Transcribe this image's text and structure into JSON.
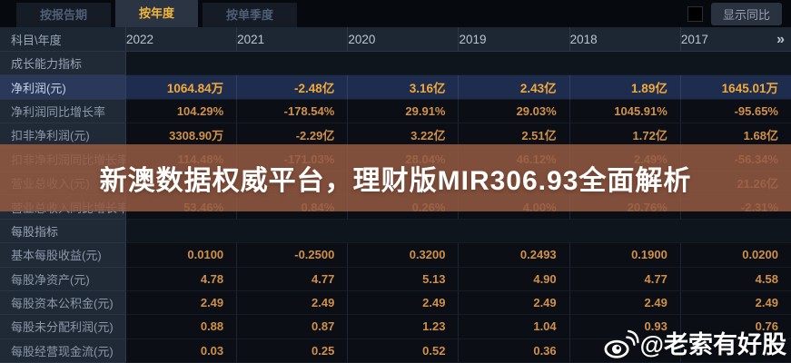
{
  "tabs": [
    {
      "label": "按报告期",
      "active": false
    },
    {
      "label": "按年度",
      "active": true
    },
    {
      "label": "按单季度",
      "active": false
    }
  ],
  "toolbar": {
    "yoy_label": "显示同比",
    "yoy_checked": false
  },
  "table": {
    "corner_label": "科目\\年度",
    "years": [
      "2022",
      "2021",
      "2020",
      "2019",
      "2018",
      "2017"
    ],
    "more_icon": "»",
    "rows": [
      {
        "type": "section",
        "label": "成长能力指标"
      },
      {
        "type": "data",
        "label": "净利润(元)",
        "highlighted": true,
        "values": [
          "1064.84万",
          "-2.48亿",
          "3.16亿",
          "2.43亿",
          "1.89亿",
          "1645.01万"
        ]
      },
      {
        "type": "data",
        "label": "净利润同比增长率",
        "values": [
          "104.29%",
          "-178.54%",
          "29.91%",
          "29.03%",
          "1045.91%",
          "-95.65%"
        ]
      },
      {
        "type": "data",
        "label": "扣非净利润(元)",
        "values": [
          "3308.90万",
          "-2.29亿",
          "3.22亿",
          "2.51亿",
          "1.72亿",
          "1.68亿"
        ]
      },
      {
        "type": "data",
        "label": "扣非净利润同比增长率",
        "values": [
          "114.48%",
          "-171.03%",
          "28.04%",
          "46.12%",
          "2.49%",
          "-56.34%"
        ]
      },
      {
        "type": "data",
        "label": "营业总收入(元)",
        "values": [
          "",
          "",
          "",
          "",
          "",
          "21.26亿"
        ]
      },
      {
        "type": "data",
        "label": "营业总收入同比增长率",
        "values": [
          "53.46%",
          "0.84%",
          "0.26%",
          "4.00%",
          "20.76%",
          "-2.31%"
        ]
      },
      {
        "type": "section",
        "label": "每股指标"
      },
      {
        "type": "data",
        "label": "基本每股收益(元)",
        "values": [
          "0.0100",
          "-0.2500",
          "0.3200",
          "0.2493",
          "0.1900",
          "0.0200"
        ]
      },
      {
        "type": "data",
        "label": "每股净资产(元)",
        "values": [
          "4.78",
          "4.77",
          "5.13",
          "4.90",
          "4.77",
          "4.58"
        ]
      },
      {
        "type": "data",
        "label": "每股资本公积金(元)",
        "values": [
          "2.49",
          "2.49",
          "2.49",
          "2.49",
          "2.49",
          "2.49"
        ]
      },
      {
        "type": "data",
        "label": "每股未分配利润(元)",
        "values": [
          "0.88",
          "0.87",
          "1.23",
          "1.04",
          "0.93",
          "0.76"
        ]
      },
      {
        "type": "data",
        "label": "每股经营现金流(元)",
        "values": [
          "0.03",
          "0.25",
          "0.52",
          "0.36",
          "",
          ""
        ]
      }
    ]
  },
  "watermark": {
    "banner_text": "新澳数据权威平台，理财版MIR306.93全面解析"
  },
  "weibo": {
    "handle": "@老索有好股",
    "logo": "weibo-eye-icon"
  },
  "colors": {
    "value_orange": "#d0904a",
    "highlight_value_orange": "#f2a93c",
    "active_tab_text": "#f2b53e",
    "banner_brown": "#945a42",
    "header_bg": "#1d2733",
    "label_col_bg": "#202a37",
    "highlight_row_bg": "#1e2c4e"
  }
}
